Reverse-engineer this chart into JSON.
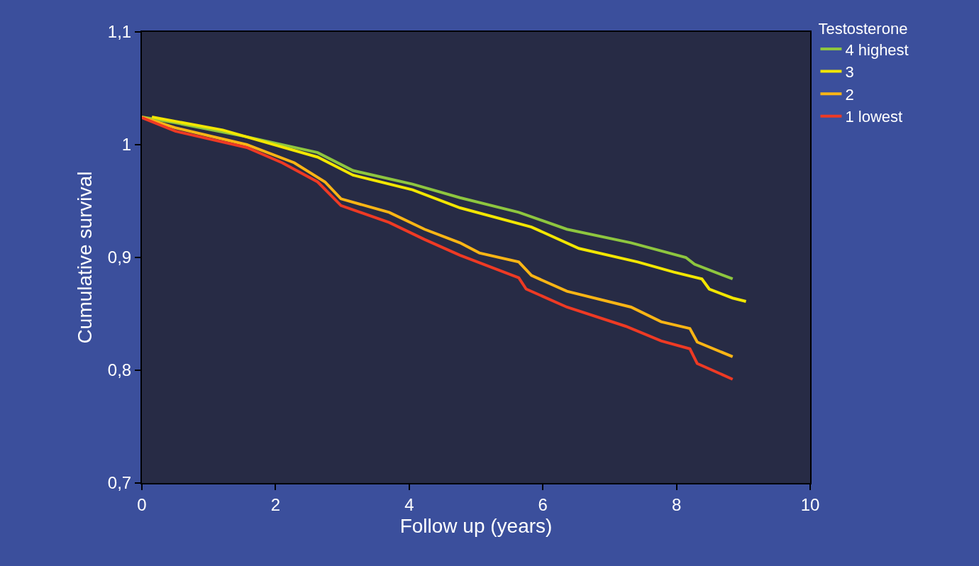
{
  "chart_data": {
    "type": "line",
    "xlabel": "Follow up (years)",
    "ylabel": "Cumulative survival",
    "legend_title": "Testosterone",
    "legend": "top right",
    "grid": false,
    "marker": "none",
    "line_style": "solid",
    "xlim": [
      0,
      10
    ],
    "xticks": [
      0,
      2,
      4,
      6,
      8,
      10
    ],
    "ylim": [
      0.7,
      1.1
    ],
    "yticks": [
      {
        "value": 0.7,
        "label": "0,7"
      },
      {
        "value": 0.8,
        "label": "0,8"
      },
      {
        "value": 0.9,
        "label": "0,9"
      },
      1,
      {
        "value": 1.1,
        "label": "1,1"
      }
    ],
    "series": [
      {
        "name": "4 highest",
        "color": "#8ec63f",
        "x": [
          0,
          0.5,
          1.57,
          2.63,
          3.16,
          4.05,
          4.76,
          5.64,
          6.36,
          7.32,
          8.14,
          8.27,
          8.84
        ],
        "values": [
          1.0245,
          1.0195,
          1.007,
          0.993,
          0.977,
          0.965,
          0.953,
          0.94,
          0.925,
          0.913,
          0.9,
          0.894,
          0.881
        ]
      },
      {
        "name": "3",
        "color": "#f2e600",
        "x": [
          0.15,
          1.21,
          2.63,
          3.16,
          4.05,
          4.76,
          5.83,
          6.54,
          7.42,
          7.96,
          8.38,
          8.49,
          8.84,
          9.04
        ],
        "values": [
          1.0245,
          1.013,
          0.989,
          0.973,
          0.96,
          0.944,
          0.927,
          0.908,
          0.896,
          0.887,
          0.881,
          0.872,
          0.864,
          0.861
        ]
      },
      {
        "name": "2",
        "color": "#fbb515",
        "x": [
          0,
          0.5,
          1.57,
          2.28,
          2.74,
          2.98,
          3.7,
          4.23,
          4.76,
          5.05,
          5.64,
          5.83,
          6.36,
          7.32,
          7.77,
          8.2,
          8.31,
          8.84
        ],
        "values": [
          1.0245,
          1.015,
          1.0,
          0.984,
          0.967,
          0.952,
          0.94,
          0.925,
          0.913,
          0.904,
          0.896,
          0.884,
          0.87,
          0.856,
          0.843,
          0.837,
          0.825,
          0.812
        ]
      },
      {
        "name": "1 lowest",
        "color": "#ee3a24",
        "x": [
          0,
          0.5,
          1.57,
          2.1,
          2.63,
          2.98,
          3.7,
          4.23,
          4.76,
          5.64,
          5.75,
          6.36,
          7.24,
          7.77,
          8.2,
          8.31,
          8.84
        ],
        "values": [
          1.024,
          1.012,
          0.9975,
          0.984,
          0.967,
          0.946,
          0.931,
          0.916,
          0.902,
          0.882,
          0.872,
          0.856,
          0.839,
          0.826,
          0.819,
          0.806,
          0.792
        ]
      }
    ]
  }
}
